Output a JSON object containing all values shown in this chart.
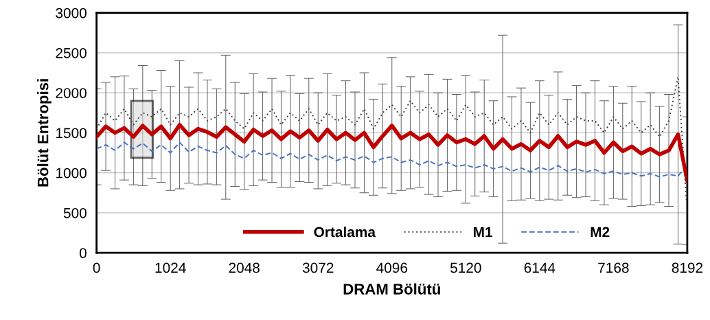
{
  "chart_data": {
    "type": "line",
    "xlabel": "DRAM Bölütü",
    "ylabel": "Bölüt Entropisi",
    "x": [
      0,
      128,
      256,
      384,
      512,
      640,
      768,
      896,
      1024,
      1152,
      1280,
      1408,
      1536,
      1664,
      1792,
      1920,
      2048,
      2176,
      2304,
      2432,
      2560,
      2688,
      2816,
      2944,
      3072,
      3200,
      3328,
      3456,
      3584,
      3712,
      3840,
      3968,
      4096,
      4224,
      4352,
      4480,
      4608,
      4736,
      4864,
      4992,
      5120,
      5248,
      5376,
      5504,
      5632,
      5760,
      5888,
      6016,
      6144,
      6272,
      6400,
      6528,
      6656,
      6784,
      6912,
      7040,
      7168,
      7296,
      7424,
      7552,
      7680,
      7808,
      7936,
      8064,
      8192
    ],
    "series": [
      {
        "name": "Ortalama",
        "color": "#c00000",
        "line_style": "solid",
        "values": [
          1450,
          1580,
          1500,
          1560,
          1450,
          1590,
          1480,
          1580,
          1430,
          1600,
          1470,
          1550,
          1510,
          1450,
          1570,
          1480,
          1390,
          1540,
          1460,
          1530,
          1420,
          1520,
          1440,
          1530,
          1400,
          1540,
          1420,
          1500,
          1410,
          1500,
          1320,
          1460,
          1590,
          1430,
          1500,
          1420,
          1480,
          1350,
          1470,
          1380,
          1420,
          1360,
          1460,
          1300,
          1420,
          1300,
          1360,
          1280,
          1400,
          1320,
          1460,
          1320,
          1390,
          1350,
          1400,
          1250,
          1380,
          1270,
          1330,
          1240,
          1300,
          1230,
          1280,
          1480,
          900
        ],
        "errors": [
          600,
          550,
          700,
          650,
          600,
          750,
          550,
          700,
          650,
          800,
          600,
          700,
          650,
          600,
          900,
          650,
          600,
          700,
          550,
          650,
          600,
          700,
          550,
          650,
          600,
          700,
          550,
          650,
          600,
          750,
          600,
          650,
          850,
          650,
          700,
          600,
          750,
          650,
          700,
          600,
          800,
          650,
          700,
          600,
          1300,
          650,
          700,
          600,
          750,
          650,
          800,
          600,
          700,
          650,
          750,
          650,
          700,
          600,
          750,
          650,
          700,
          600,
          700,
          1370,
          800
        ]
      },
      {
        "name": "M1",
        "color": "#404040",
        "line_style": "dotted",
        "values": [
          1550,
          1750,
          1650,
          1800,
          1600,
          1750,
          1700,
          1800,
          1600,
          1750,
          1700,
          1800,
          1650,
          1700,
          1800,
          1650,
          1550,
          1750,
          1650,
          1800,
          1600,
          1750,
          1650,
          1800,
          1600,
          1750,
          1650,
          1700,
          1600,
          1800,
          1550,
          1750,
          1850,
          1700,
          1900,
          1750,
          1850,
          1700,
          1800,
          1650,
          1850,
          1700,
          1750,
          1600,
          1700,
          1550,
          1650,
          1500,
          1750,
          1600,
          1750,
          1600,
          1700,
          1650,
          1650,
          1500,
          1700,
          1550,
          1650,
          1500,
          1600,
          1450,
          1650,
          2200,
          500
        ]
      },
      {
        "name": "M2",
        "color": "#4472c4",
        "line_style": "dashed",
        "values": [
          1300,
          1350,
          1280,
          1380,
          1300,
          1370,
          1270,
          1350,
          1250,
          1380,
          1260,
          1330,
          1280,
          1250,
          1340,
          1230,
          1180,
          1280,
          1220,
          1250,
          1180,
          1240,
          1170,
          1230,
          1160,
          1220,
          1150,
          1200,
          1160,
          1210,
          1130,
          1180,
          1200,
          1130,
          1160,
          1100,
          1150,
          1090,
          1130,
          1080,
          1100,
          1060,
          1100,
          1050,
          1080,
          1020,
          1060,
          1010,
          1070,
          1030,
          1090,
          1020,
          1050,
          1010,
          1040,
          990,
          1020,
          980,
          1000,
          960,
          990,
          950,
          980,
          960,
          1100
        ]
      }
    ],
    "xlim": [
      0,
      8192
    ],
    "xticks": [
      0,
      1024,
      2048,
      3072,
      4096,
      5120,
      6144,
      7168,
      8192
    ],
    "ylim": [
      0,
      3000
    ],
    "yticks": [
      0,
      500,
      1000,
      1500,
      2000,
      2500,
      3000
    ],
    "grid": "y",
    "legend": "bottom",
    "marker": "none",
    "bands": [
      {
        "axis": "x",
        "from": 480,
        "to": 780,
        "color": "#d9d9d9"
      }
    ]
  }
}
